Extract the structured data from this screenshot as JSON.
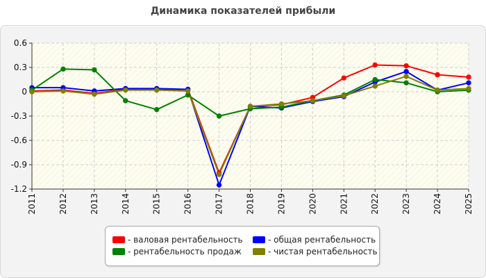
{
  "chart_data": {
    "type": "line",
    "title": "Динамика показателей прибыли",
    "categories": [
      "2011",
      "2012",
      "2013",
      "2014",
      "2015",
      "2016",
      "2017",
      "2018",
      "2019",
      "2020",
      "2021",
      "2022",
      "2023",
      "2024",
      "2025"
    ],
    "ylim": [
      -1.2,
      0.6
    ],
    "yticks": [
      0.6,
      0.3,
      0,
      -0.3,
      -0.6,
      -0.9,
      -1.2
    ],
    "ytick_labels": [
      "0.6",
      "0.3",
      "0",
      "-0.3",
      "-0.6",
      "-0.9",
      "-1.2"
    ],
    "grid": true,
    "legend_position": "bottom-center",
    "series": [
      {
        "name": "- валовая рентабельность",
        "color": "#ff0000",
        "values": [
          0.01,
          0.02,
          -0.02,
          0.03,
          0.03,
          0.03,
          -1.0,
          -0.18,
          -0.16,
          -0.07,
          0.17,
          0.33,
          0.32,
          0.21,
          0.18
        ]
      },
      {
        "name": "- общая рентабельность",
        "color": "#0000ff",
        "values": [
          0.05,
          0.05,
          0.01,
          0.04,
          0.04,
          0.03,
          -1.15,
          -0.18,
          -0.2,
          -0.12,
          -0.06,
          0.12,
          0.25,
          0.02,
          0.11
        ]
      },
      {
        "name": "- рентабельность продаж",
        "color": "#008000",
        "values": [
          0.02,
          0.28,
          0.27,
          -0.11,
          -0.22,
          -0.04,
          -0.3,
          -0.21,
          -0.19,
          -0.11,
          -0.04,
          0.15,
          0.11,
          0.0,
          0.02
        ]
      },
      {
        "name": "- чистая рентабельность",
        "color": "#808000",
        "values": [
          0.0,
          0.01,
          -0.03,
          0.02,
          0.02,
          0.01,
          -1.02,
          -0.18,
          -0.15,
          -0.11,
          -0.05,
          0.07,
          0.19,
          0.02,
          0.04
        ]
      }
    ]
  }
}
